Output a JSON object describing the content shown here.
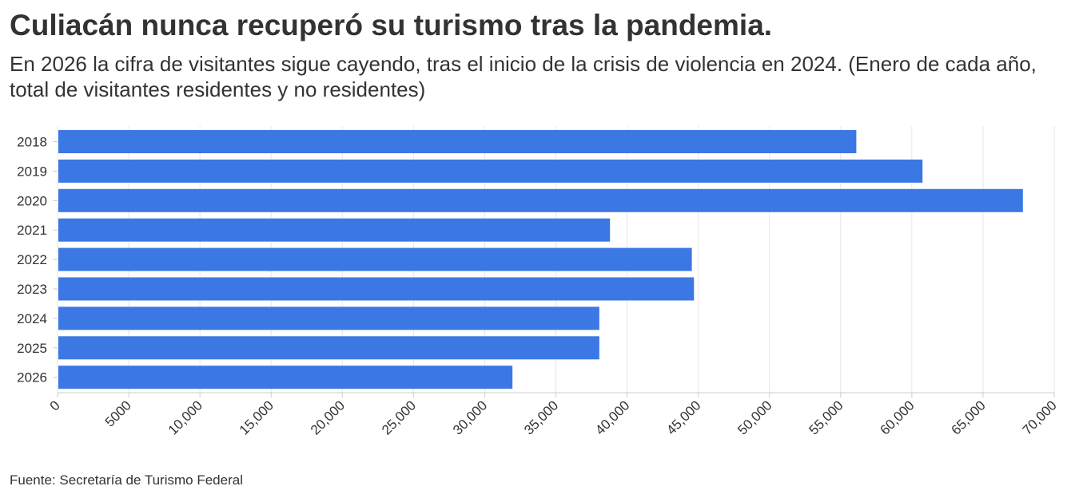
{
  "title": "Culiacán nunca recuperó su turismo tras la pandemia.",
  "subtitle": "En 2026 la cifra de visitantes sigue cayendo, tras el inicio de la crisis de violencia en 2024. (Enero de cada año, total de visitantes residentes y no residentes)",
  "source": "Fuente: Secretaría de Turismo Federal",
  "colors": {
    "bar": "#3c78e4",
    "grid": "#e6e6e6",
    "axis": "#cccccc",
    "text": "#333333"
  },
  "chart_data": {
    "type": "bar",
    "orientation": "horizontal",
    "title": "Culiacán nunca recuperó su turismo tras la pandemia.",
    "xlabel": "",
    "ylabel": "",
    "categories": [
      "2018",
      "2019",
      "2020",
      "2021",
      "2022",
      "2023",
      "2024",
      "2025",
      "2026"
    ],
    "values": [
      56100,
      60750,
      67800,
      38800,
      44550,
      44700,
      38050,
      38050,
      31950
    ],
    "xlim": [
      0,
      70000
    ],
    "ticks": [
      0,
      5000,
      10000,
      15000,
      20000,
      25000,
      30000,
      35000,
      40000,
      45000,
      50000,
      55000,
      60000,
      65000,
      70000
    ],
    "tick_labels": [
      "0",
      "5000",
      "10,000",
      "15,000",
      "20,000",
      "25,000",
      "30,000",
      "35,000",
      "40,000",
      "45,000",
      "50,000",
      "55,000",
      "60,000",
      "65,000",
      "70,000"
    ],
    "grid": true
  }
}
